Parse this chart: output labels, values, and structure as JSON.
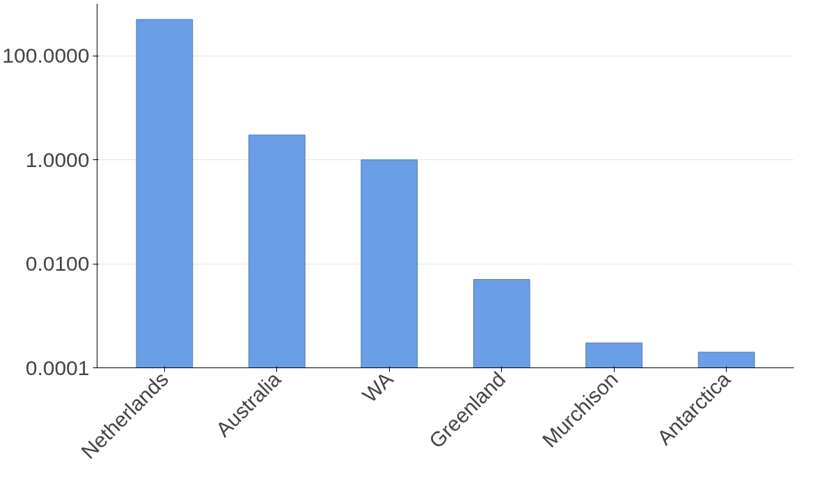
{
  "chart_data": {
    "type": "bar",
    "categories": [
      "Netherlands",
      "Australia",
      "WA",
      "Greenland",
      "Murchison",
      "Antarctica"
    ],
    "values": [
      500,
      3,
      1,
      0.005,
      0.0003,
      0.0002
    ],
    "color": "#6a9ee6",
    "log": true,
    "ylim": [
      0.0001,
      1000
    ],
    "yticks": [
      {
        "value": 0.0001,
        "label": "0.0001"
      },
      {
        "value": 0.01,
        "label": "0.0100"
      },
      {
        "value": 1,
        "label": "1.0000"
      },
      {
        "value": 100,
        "label": "100.0000"
      }
    ],
    "grid": "y"
  }
}
